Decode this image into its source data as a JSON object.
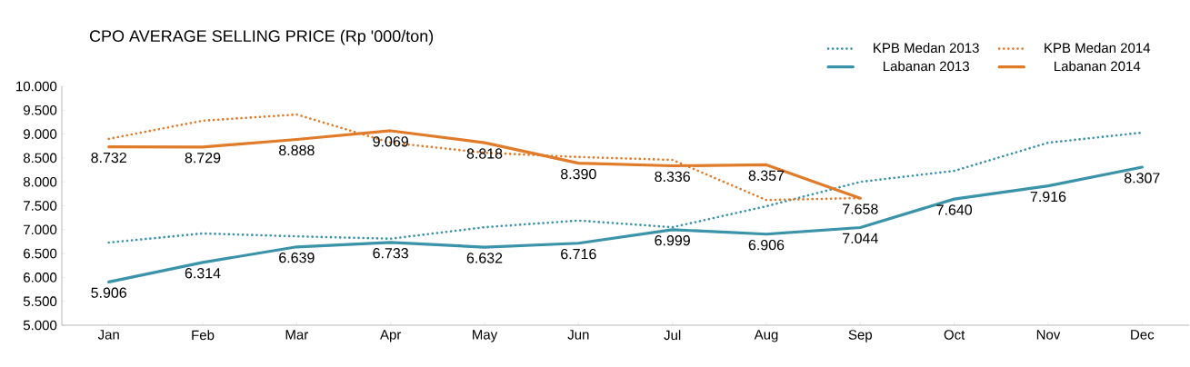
{
  "chart_data": {
    "type": "line",
    "title": "CPO AVERAGE SELLING PRICE (Rp '000/ton)",
    "categories": [
      "Jan",
      "Feb",
      "Mar",
      "Apr",
      "May",
      "Jun",
      "Jul",
      "Aug",
      "Sep",
      "Oct",
      "Nov",
      "Dec"
    ],
    "ylim": [
      5000,
      10000
    ],
    "yticks": [
      {
        "value": 5000,
        "label": "5.000"
      },
      {
        "value": 5500,
        "label": "5.500"
      },
      {
        "value": 6000,
        "label": "6.000"
      },
      {
        "value": 6500,
        "label": "6.500"
      },
      {
        "value": 7000,
        "label": "7.000"
      },
      {
        "value": 7500,
        "label": "7.500"
      },
      {
        "value": 8000,
        "label": "8.000"
      },
      {
        "value": 8500,
        "label": "8.500"
      },
      {
        "value": 9000,
        "label": "9.000"
      },
      {
        "value": 9500,
        "label": "9.500"
      },
      {
        "value": 10000,
        "label": "10.000"
      }
    ],
    "legend": "top right",
    "series": [
      {
        "name": "KPB Medan 2013",
        "color": "#3a93a8",
        "line_style": "dotted",
        "values": [
          6730,
          6920,
          6860,
          6810,
          7050,
          7190,
          7050,
          7490,
          8000,
          8230,
          8820,
          9030
        ]
      },
      {
        "name": "KPB Medan 2014",
        "color": "#e07b2a",
        "line_style": "dotted",
        "values": [
          8900,
          9280,
          9410,
          8820,
          8610,
          8520,
          8460,
          7620,
          7660,
          null,
          null,
          null
        ]
      },
      {
        "name": "Labanan 2013",
        "color": "#3a93a8",
        "line_style": "solid",
        "values": [
          5906,
          6314,
          6639,
          6733,
          6632,
          6716,
          6999,
          6906,
          7044,
          7640,
          7916,
          8307
        ],
        "value_labels": [
          "5.906",
          "6.314",
          "6.639",
          "6.733",
          "6.632",
          "6.716",
          "6.999",
          "6.906",
          "7.044",
          "7.640",
          "7.916",
          "8.307"
        ]
      },
      {
        "name": "Labanan 2014",
        "color": "#e07b2a",
        "line_style": "solid",
        "values": [
          8732,
          8729,
          8888,
          9069,
          8818,
          8390,
          8336,
          8357,
          7658,
          null,
          null,
          null
        ],
        "value_labels": [
          "8.732",
          "8.729",
          "8.888",
          "9.069",
          "8.818",
          "8.390",
          "8.336",
          "8.357",
          "7.658",
          null,
          null,
          null
        ]
      }
    ]
  }
}
